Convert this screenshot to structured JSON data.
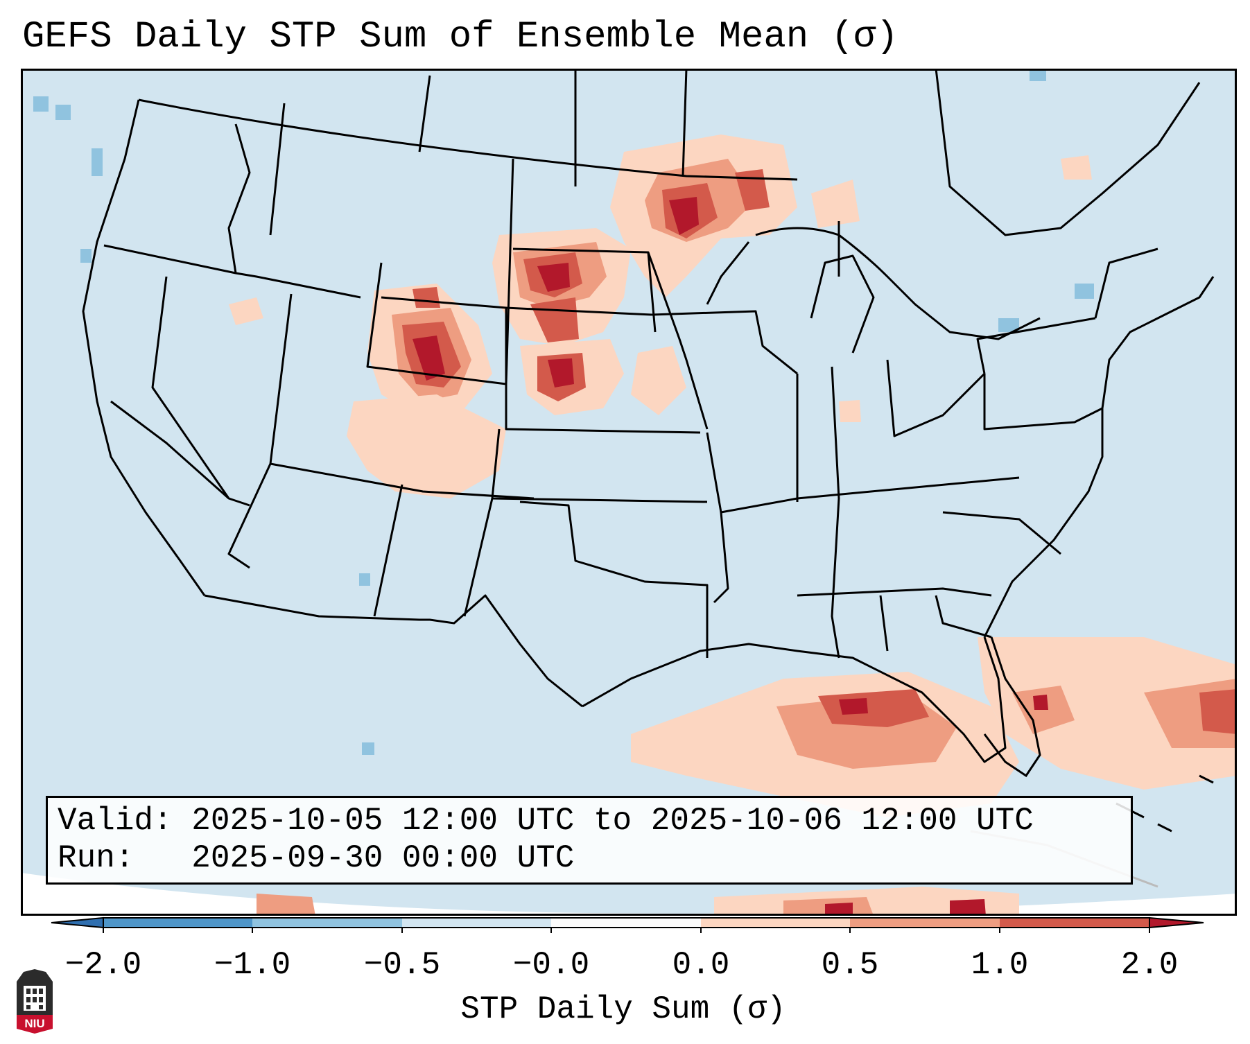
{
  "title": "GEFS Daily STP Sum of Ensemble Mean (σ)",
  "info": {
    "valid_label": "Valid:",
    "valid_value": "2025-10-05 12:00 UTC to 2025-10-06 12:00 UTC",
    "run_label": "Run:",
    "run_value": "2025-09-30 00:00 UTC"
  },
  "colorbar": {
    "label": "STP Daily Sum (σ)",
    "ticks": [
      "−2.0",
      "−1.0",
      "−0.5",
      "−0.0",
      "0.0",
      "0.5",
      "1.0",
      "2.0"
    ],
    "colors": [
      "#2f6fb0",
      "#4f96c9",
      "#90c3df",
      "#d2e5f0",
      "#fbfbfb",
      "#fcd6c1",
      "#ee9d81",
      "#d35a4b",
      "#b2182b"
    ]
  },
  "map": {
    "background_color": "#d2e5f0",
    "region": "CONUS",
    "features": [
      "state-borders",
      "coastlines",
      "stp-anomaly-shading"
    ]
  },
  "logo": {
    "text": "NIU"
  }
}
